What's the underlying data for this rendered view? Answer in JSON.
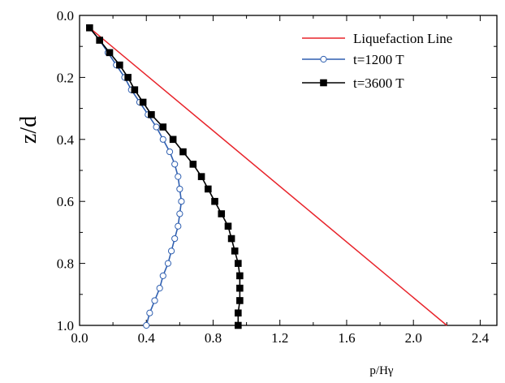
{
  "chart_data": {
    "type": "line",
    "title": "",
    "xlabel": "p/Hγ",
    "ylabel": "z/d",
    "xlim": [
      0.0,
      2.5
    ],
    "ylim": [
      0.0,
      1.0
    ],
    "y_inverted": true,
    "x_ticks": [
      "0.0",
      "0.4",
      "0.8",
      "1.2",
      "1.6",
      "2.0",
      "2.4"
    ],
    "x_tick_values": [
      0.0,
      0.4,
      0.8,
      1.2,
      1.6,
      2.0,
      2.4
    ],
    "y_ticks": [
      "0.0",
      "0.2",
      "0.4",
      "0.6",
      "0.8",
      "1.0"
    ],
    "y_tick_values": [
      0.0,
      0.2,
      0.4,
      0.6,
      0.8,
      1.0
    ],
    "grid": false,
    "legend_position": "top-right",
    "series": [
      {
        "name": "Liquefaction Line",
        "color": "#e8232a",
        "marker": "none",
        "points": [
          [
            0.06,
            0.04
          ],
          [
            2.2,
            1.0
          ]
        ]
      },
      {
        "name": "t=1200 T",
        "color": "#2f5fb0",
        "marker": "open-circle",
        "points": [
          [
            0.06,
            0.04
          ],
          [
            0.12,
            0.08
          ],
          [
            0.17,
            0.12
          ],
          [
            0.22,
            0.16
          ],
          [
            0.27,
            0.2
          ],
          [
            0.31,
            0.24
          ],
          [
            0.36,
            0.28
          ],
          [
            0.41,
            0.32
          ],
          [
            0.46,
            0.36
          ],
          [
            0.5,
            0.4
          ],
          [
            0.54,
            0.44
          ],
          [
            0.57,
            0.48
          ],
          [
            0.59,
            0.52
          ],
          [
            0.6,
            0.56
          ],
          [
            0.61,
            0.6
          ],
          [
            0.6,
            0.64
          ],
          [
            0.59,
            0.68
          ],
          [
            0.57,
            0.72
          ],
          [
            0.55,
            0.76
          ],
          [
            0.53,
            0.8
          ],
          [
            0.5,
            0.84
          ],
          [
            0.48,
            0.88
          ],
          [
            0.45,
            0.92
          ],
          [
            0.42,
            0.96
          ],
          [
            0.4,
            1.0
          ]
        ]
      },
      {
        "name": "t=3600 T",
        "color": "#000000",
        "marker": "filled-square",
        "points": [
          [
            0.06,
            0.04
          ],
          [
            0.12,
            0.08
          ],
          [
            0.18,
            0.12
          ],
          [
            0.24,
            0.16
          ],
          [
            0.29,
            0.2
          ],
          [
            0.33,
            0.24
          ],
          [
            0.38,
            0.28
          ],
          [
            0.43,
            0.32
          ],
          [
            0.5,
            0.36
          ],
          [
            0.56,
            0.4
          ],
          [
            0.62,
            0.44
          ],
          [
            0.68,
            0.48
          ],
          [
            0.73,
            0.52
          ],
          [
            0.77,
            0.56
          ],
          [
            0.81,
            0.6
          ],
          [
            0.85,
            0.64
          ],
          [
            0.89,
            0.68
          ],
          [
            0.91,
            0.72
          ],
          [
            0.93,
            0.76
          ],
          [
            0.95,
            0.8
          ],
          [
            0.96,
            0.84
          ],
          [
            0.96,
            0.88
          ],
          [
            0.96,
            0.92
          ],
          [
            0.95,
            0.96
          ],
          [
            0.95,
            1.0
          ]
        ]
      }
    ]
  }
}
